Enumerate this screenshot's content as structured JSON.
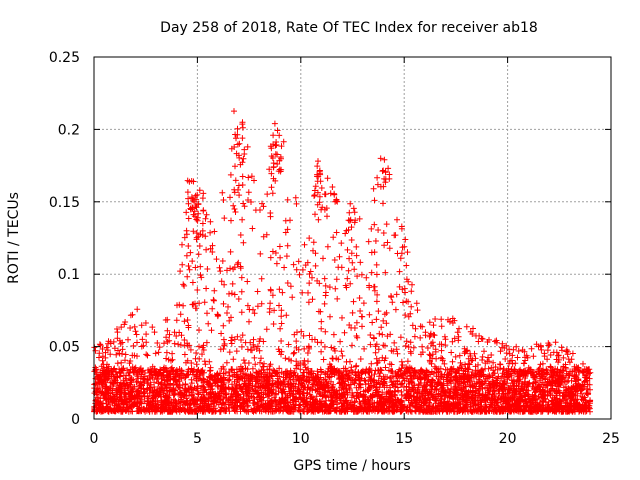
{
  "chart_data": {
    "type": "scatter",
    "title": "Day 258 of 2018, Rate Of TEC Index for receiver ab18",
    "xlabel": "GPS time / hours",
    "ylabel": "ROTI / TECUs",
    "xlim": [
      0,
      25
    ],
    "ylim": [
      0,
      0.25
    ],
    "xticks": [
      0,
      5,
      10,
      15,
      20,
      25
    ],
    "xtick_labels": [
      "0",
      "5",
      "10",
      "15",
      "20",
      "25"
    ],
    "yticks": [
      0,
      0.05,
      0.1,
      0.15,
      0.2,
      0.25
    ],
    "ytick_labels": [
      "0",
      "0.05",
      "0.1",
      "0.15",
      "0.2",
      "0.25"
    ],
    "grid": true,
    "marker": "+",
    "series": [
      {
        "name": "ROTI",
        "color": "#ff0000",
        "baseline_range": [
          0.005,
          0.035
        ],
        "profile_x": [
          0,
          1,
          2,
          3,
          4,
          4.5,
          5,
          5.5,
          6,
          7,
          8,
          9,
          10,
          11,
          12,
          13,
          14,
          15,
          16,
          17,
          18,
          19,
          20,
          21,
          22,
          23,
          24
        ],
        "profile_max": [
          0.05,
          0.06,
          0.08,
          0.06,
          0.08,
          0.16,
          0.165,
          0.15,
          0.14,
          0.22,
          0.15,
          0.205,
          0.14,
          0.18,
          0.15,
          0.14,
          0.18,
          0.12,
          0.07,
          0.07,
          0.07,
          0.06,
          0.05,
          0.05,
          0.055,
          0.05,
          0.04
        ],
        "clusters": [
          {
            "x": 4.7,
            "y": [
              0.14,
              0.165
            ],
            "n": 18
          },
          {
            "x": 5.05,
            "y": [
              0.11,
              0.16
            ],
            "n": 16
          },
          {
            "x": 7.0,
            "y": [
              0.15,
              0.22
            ],
            "n": 18
          },
          {
            "x": 8.8,
            "y": [
              0.16,
              0.205
            ],
            "n": 24
          },
          {
            "x": 10.85,
            "y": [
              0.14,
              0.18
            ],
            "n": 16
          },
          {
            "x": 14.1,
            "y": [
              0.16,
              0.18
            ],
            "n": 10
          },
          {
            "x": 12.5,
            "y": [
              0.11,
              0.15
            ],
            "n": 8
          },
          {
            "x": 15.0,
            "y": [
              0.1,
              0.135
            ],
            "n": 8
          }
        ]
      }
    ]
  }
}
